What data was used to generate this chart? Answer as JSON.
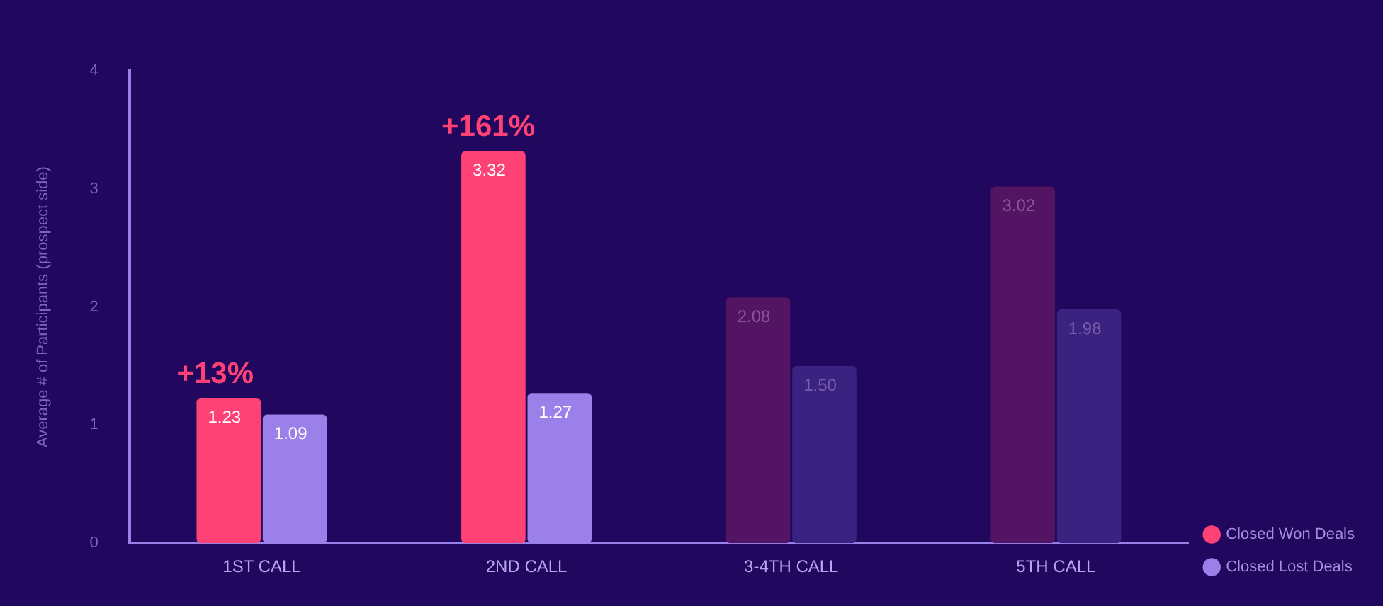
{
  "chart_data": {
    "type": "bar",
    "ylabel": "Average # of Participants (prospect side)",
    "categories": [
      "1ST CALL",
      "2ND CALL",
      "3-4TH CALL",
      "5TH CALL"
    ],
    "series": [
      {
        "name": "Closed Won Deals",
        "color": "#ff4275",
        "colors": [
          "#ff4275",
          "#ff4275",
          "#521463",
          "#521463"
        ],
        "values": [
          1.23,
          3.32,
          2.08,
          3.02
        ],
        "value_labels": [
          "1.23",
          "3.32",
          "2.08",
          "3.02"
        ]
      },
      {
        "name": "Closed Lost Deals",
        "color": "#9b80ea",
        "colors": [
          "#9b80ea",
          "#9b80ea",
          "#3a2380",
          "#3a2380"
        ],
        "values": [
          1.09,
          1.27,
          1.5,
          1.98
        ],
        "value_labels": [
          "1.09",
          "1.27",
          "1.50",
          "1.98"
        ]
      }
    ],
    "ylim": [
      0,
      4
    ],
    "yticks": [
      0,
      1,
      2,
      3,
      4
    ],
    "grid": false,
    "legend": "bottom right",
    "annotations": [
      {
        "text": "+13%",
        "x": "1ST CALL",
        "y": 1.23
      },
      {
        "text": "+161%",
        "x": "2ND CALL",
        "y": 3.32
      }
    ]
  }
}
